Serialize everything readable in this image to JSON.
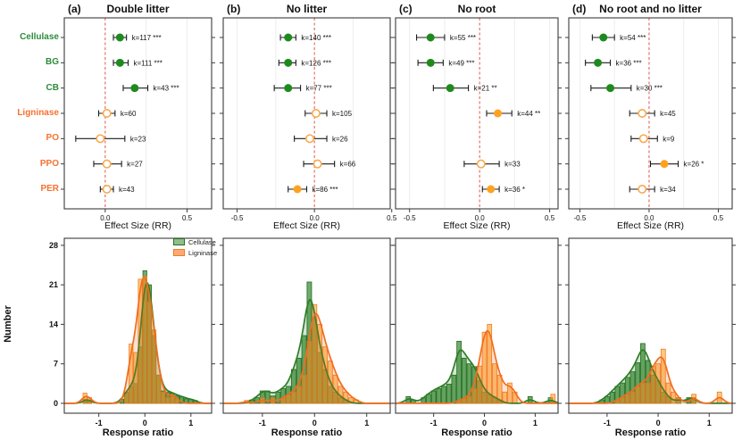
{
  "figure": {
    "top_axis_label": "Effect Size (RR)",
    "bottom_axis_label": "Response ratio",
    "number_label": "Number",
    "legend": [
      {
        "label": "Cellulase",
        "fill": "#8fbf8a",
        "stroke": "#2e6b2a"
      },
      {
        "label": "Ligninase",
        "fill": "#fbaa77",
        "stroke": "#ef7c1e"
      }
    ],
    "enzyme_labels": [
      {
        "label": "Cellulase",
        "color": "#2e8b3c"
      },
      {
        "label": "BG",
        "color": "#2e8b3c"
      },
      {
        "label": "CB",
        "color": "#2e8b3c"
      },
      {
        "label": "Ligninase",
        "color": "#f7712e"
      },
      {
        "label": "PO",
        "color": "#f7712e"
      },
      {
        "label": "PPO",
        "color": "#f7712e"
      },
      {
        "label": "PER",
        "color": "#f7712e"
      }
    ],
    "colors": {
      "filled_green": "#1e8a1e",
      "filled_orange": "#ffa21f",
      "open_orange": "#f8a94e",
      "zero_line": "#e0564a",
      "grid": "#ededed",
      "box_border": "#3b3b3b",
      "error_bar": "#1c1c1c",
      "green_bar_fill": "#4a9444",
      "green_bar_stroke": "#1f6b1f",
      "orange_bar_fill": "#ffa42e",
      "orange_bar_stroke": "#ef7c1e",
      "green_curve": "#2f7d26",
      "orange_curve": "#f26d1d"
    }
  },
  "chart_data": [
    {
      "type": "scatter",
      "subtype": "forest",
      "letter": "(a)",
      "title": "Double litter",
      "xlabel": "Effect Size (RR)",
      "xdomain": [
        -0.25,
        0.65
      ],
      "xticks": [
        0,
        0.5
      ],
      "rows": [
        {
          "enzyme": "Cellulase",
          "est": 0.09,
          "lo": 0.05,
          "hi": 0.13,
          "k": 117,
          "sig": "***",
          "marker": "green"
        },
        {
          "enzyme": "BG",
          "est": 0.09,
          "lo": 0.05,
          "hi": 0.14,
          "k": 111,
          "sig": "***",
          "marker": "green"
        },
        {
          "enzyme": "CB",
          "est": 0.18,
          "lo": 0.11,
          "hi": 0.26,
          "k": 43,
          "sig": "***",
          "marker": "green"
        },
        {
          "enzyme": "Ligninase",
          "est": 0.01,
          "lo": -0.04,
          "hi": 0.06,
          "k": 60,
          "sig": "",
          "marker": "open"
        },
        {
          "enzyme": "PO",
          "est": -0.03,
          "lo": -0.18,
          "hi": 0.12,
          "k": 23,
          "sig": "",
          "marker": "open"
        },
        {
          "enzyme": "PPO",
          "est": 0.01,
          "lo": -0.07,
          "hi": 0.1,
          "k": 27,
          "sig": "",
          "marker": "open"
        },
        {
          "enzyme": "PER",
          "est": 0.01,
          "lo": -0.03,
          "hi": 0.05,
          "k": 43,
          "sig": "",
          "marker": "open"
        }
      ]
    },
    {
      "type": "scatter",
      "subtype": "forest",
      "letter": "(b)",
      "title": "No litter",
      "xlabel": "Effect Size (RR)",
      "xdomain": [
        -0.59,
        0.49
      ],
      "xticks": [
        -0.5,
        0,
        0.5
      ],
      "rows": [
        {
          "enzyme": "Cellulase",
          "est": -0.17,
          "lo": -0.22,
          "hi": -0.12,
          "k": 140,
          "sig": "***",
          "marker": "green"
        },
        {
          "enzyme": "BG",
          "est": -0.17,
          "lo": -0.23,
          "hi": -0.12,
          "k": 126,
          "sig": "***",
          "marker": "green"
        },
        {
          "enzyme": "CB",
          "est": -0.17,
          "lo": -0.26,
          "hi": -0.09,
          "k": 77,
          "sig": "***",
          "marker": "green"
        },
        {
          "enzyme": "Ligninase",
          "est": 0.01,
          "lo": -0.06,
          "hi": 0.08,
          "k": 105,
          "sig": "",
          "marker": "open"
        },
        {
          "enzyme": "PO",
          "est": -0.03,
          "lo": -0.13,
          "hi": 0.08,
          "k": 26,
          "sig": "",
          "marker": "open"
        },
        {
          "enzyme": "PPO",
          "est": 0.02,
          "lo": -0.07,
          "hi": 0.13,
          "k": 66,
          "sig": "",
          "marker": "open"
        },
        {
          "enzyme": "PER",
          "est": -0.11,
          "lo": -0.17,
          "hi": -0.05,
          "k": 86,
          "sig": "***",
          "marker": "orange"
        }
      ]
    },
    {
      "type": "scatter",
      "subtype": "forest",
      "letter": "(c)",
      "title": "No root",
      "xlabel": "Effect Size (RR)",
      "xdomain": [
        -0.6,
        0.56
      ],
      "xticks": [
        -0.5,
        0,
        0.5
      ],
      "rows": [
        {
          "enzyme": "Cellulase",
          "est": -0.35,
          "lo": -0.45,
          "hi": -0.25,
          "k": 55,
          "sig": "***",
          "marker": "green"
        },
        {
          "enzyme": "BG",
          "est": -0.35,
          "lo": -0.44,
          "hi": -0.26,
          "k": 49,
          "sig": "***",
          "marker": "green"
        },
        {
          "enzyme": "CB",
          "est": -0.21,
          "lo": -0.33,
          "hi": -0.08,
          "k": 21,
          "sig": "**",
          "marker": "green"
        },
        {
          "enzyme": "Ligninase",
          "est": 0.13,
          "lo": 0.05,
          "hi": 0.23,
          "k": 44,
          "sig": "**",
          "marker": "orange"
        },
        {
          "enzyme": "PO",
          "est": null,
          "lo": null,
          "hi": null,
          "k": null,
          "sig": "",
          "marker": "none"
        },
        {
          "enzyme": "PPO",
          "est": 0.01,
          "lo": -0.11,
          "hi": 0.14,
          "k": 33,
          "sig": "",
          "marker": "open"
        },
        {
          "enzyme": "PER",
          "est": 0.08,
          "lo": 0.02,
          "hi": 0.14,
          "k": 36,
          "sig": "*",
          "marker": "orange"
        }
      ]
    },
    {
      "type": "scatter",
      "subtype": "forest",
      "letter": "(d)",
      "title": "No root and no litter",
      "xlabel": "Effect Size (RR)",
      "xdomain": [
        -0.58,
        0.6
      ],
      "xticks": [
        -0.5,
        0,
        0.5
      ],
      "rows": [
        {
          "enzyme": "Cellulase",
          "est": -0.33,
          "lo": -0.41,
          "hi": -0.25,
          "k": 54,
          "sig": "***",
          "marker": "green"
        },
        {
          "enzyme": "BG",
          "est": -0.37,
          "lo": -0.46,
          "hi": -0.28,
          "k": 36,
          "sig": "***",
          "marker": "green"
        },
        {
          "enzyme": "CB",
          "est": -0.28,
          "lo": -0.42,
          "hi": -0.13,
          "k": 30,
          "sig": "***",
          "marker": "green"
        },
        {
          "enzyme": "Ligninase",
          "est": -0.05,
          "lo": -0.14,
          "hi": 0.04,
          "k": 45,
          "sig": "",
          "marker": "open"
        },
        {
          "enzyme": "PO",
          "est": -0.04,
          "lo": -0.13,
          "hi": 0.06,
          "k": 9,
          "sig": "",
          "marker": "open"
        },
        {
          "enzyme": "PPO",
          "est": 0.11,
          "lo": 0.01,
          "hi": 0.21,
          "k": 26,
          "sig": "*",
          "marker": "orange"
        },
        {
          "enzyme": "PER",
          "est": -0.05,
          "lo": -0.14,
          "hi": 0.04,
          "k": 34,
          "sig": "",
          "marker": "open"
        }
      ]
    },
    {
      "type": "bar",
      "subtype": "histogram-overlay",
      "condition": "Double litter",
      "xlabel": "Response ratio",
      "ylabel": "Number",
      "xdomain": [
        -1.75,
        1.45
      ],
      "xticks": [
        -1,
        0,
        1
      ],
      "ylim": [
        -1.75,
        29.25
      ],
      "yticks": [
        0,
        7,
        14,
        21,
        28
      ],
      "show_ylabels": true,
      "bin_width": 0.1,
      "series": [
        {
          "name": "Cellulase",
          "bins": [
            [
              -1.3,
              0.7
            ],
            [
              -1.2,
              0.6
            ],
            [
              -0.5,
              0.7
            ],
            [
              -0.4,
              2
            ],
            [
              -0.3,
              3
            ],
            [
              -0.2,
              3.5
            ],
            [
              -0.1,
              10
            ],
            [
              0,
              23.5
            ],
            [
              0.1,
              21
            ],
            [
              0.2,
              12
            ],
            [
              0.3,
              5
            ],
            [
              0.4,
              2.2
            ],
            [
              0.5,
              2
            ],
            [
              0.6,
              1.8
            ],
            [
              0.7,
              1.3
            ],
            [
              0.8,
              1.2
            ],
            [
              0.9,
              0.8
            ],
            [
              1,
              0.7
            ],
            [
              1.1,
              0.5
            ]
          ]
        },
        {
          "name": "Ligninase",
          "bins": [
            [
              -1.3,
              1.8
            ],
            [
              -1.2,
              1
            ],
            [
              -0.4,
              2
            ],
            [
              -0.3,
              10.5
            ],
            [
              -0.2,
              9
            ],
            [
              -0.1,
              22
            ],
            [
              0,
              22.5
            ],
            [
              0.1,
              18
            ],
            [
              0.2,
              13
            ],
            [
              0.3,
              5
            ],
            [
              0.4,
              2
            ],
            [
              0.5,
              1
            ],
            [
              0.6,
              1.6
            ],
            [
              0.7,
              0.8
            ]
          ]
        }
      ]
    },
    {
      "type": "bar",
      "subtype": "histogram-overlay",
      "condition": "No litter",
      "xlabel": "Response ratio",
      "ylabel": "Number",
      "xdomain": [
        -1.75,
        1.45
      ],
      "xticks": [
        -1,
        0,
        1
      ],
      "ylim": [
        -1.75,
        29.25
      ],
      "yticks": [
        0,
        7,
        14,
        21,
        28
      ],
      "show_ylabels": false,
      "bin_width": 0.1,
      "series": [
        {
          "name": "Cellulase",
          "bins": [
            [
              -1.2,
              0.6
            ],
            [
              -1.1,
              1
            ],
            [
              -1,
              2.2
            ],
            [
              -0.9,
              2.2
            ],
            [
              -0.8,
              1.3
            ],
            [
              -0.7,
              2
            ],
            [
              -0.6,
              2.6
            ],
            [
              -0.5,
              3
            ],
            [
              -0.4,
              6
            ],
            [
              -0.3,
              8
            ],
            [
              -0.2,
              12
            ],
            [
              -0.1,
              21.5
            ],
            [
              0,
              15
            ],
            [
              0.1,
              9
            ],
            [
              0.2,
              6
            ],
            [
              0.3,
              3
            ],
            [
              0.4,
              2
            ],
            [
              0.5,
              1
            ],
            [
              0.6,
              0.6
            ]
          ]
        },
        {
          "name": "Ligninase",
          "bins": [
            [
              -1.3,
              0.5
            ],
            [
              -1,
              1
            ],
            [
              -0.8,
              1
            ],
            [
              -0.6,
              1
            ],
            [
              -0.5,
              1.5
            ],
            [
              -0.4,
              2
            ],
            [
              -0.3,
              3
            ],
            [
              -0.2,
              5
            ],
            [
              -0.1,
              11
            ],
            [
              0,
              17.5
            ],
            [
              0.1,
              14
            ],
            [
              0.2,
              10
            ],
            [
              0.3,
              7.5
            ],
            [
              0.4,
              5
            ],
            [
              0.5,
              3
            ],
            [
              0.6,
              2
            ],
            [
              0.7,
              1
            ],
            [
              0.8,
              0.6
            ]
          ]
        }
      ]
    },
    {
      "type": "bar",
      "subtype": "histogram-overlay",
      "condition": "No root",
      "xlabel": "Response ratio",
      "ylabel": "Number",
      "xdomain": [
        -1.75,
        1.45
      ],
      "xticks": [
        -1,
        0,
        1
      ],
      "ylim": [
        -1.75,
        29.25
      ],
      "yticks": [
        0,
        7,
        14,
        21,
        28
      ],
      "show_ylabels": false,
      "bin_width": 0.1,
      "series": [
        {
          "name": "Cellulase",
          "bins": [
            [
              -1.5,
              1.2
            ],
            [
              -1.4,
              0.6
            ],
            [
              -1.2,
              1
            ],
            [
              -1.1,
              1.6
            ],
            [
              -1,
              2.2
            ],
            [
              -0.9,
              2.6
            ],
            [
              -0.8,
              3
            ],
            [
              -0.7,
              3.4
            ],
            [
              -0.6,
              5
            ],
            [
              -0.5,
              11
            ],
            [
              -0.4,
              8
            ],
            [
              -0.3,
              7
            ],
            [
              -0.2,
              6.5
            ],
            [
              -0.1,
              4
            ],
            [
              0,
              2
            ],
            [
              0.1,
              1.5
            ],
            [
              0.2,
              1
            ],
            [
              0.3,
              0.6
            ],
            [
              0.9,
              1.2
            ],
            [
              1.3,
              1
            ]
          ]
        },
        {
          "name": "Ligninase",
          "bins": [
            [
              -0.5,
              0.5
            ],
            [
              -0.4,
              0.8
            ],
            [
              -0.3,
              1.2
            ],
            [
              -0.2,
              2.6
            ],
            [
              -0.1,
              6.6
            ],
            [
              0,
              12.6
            ],
            [
              0.1,
              14
            ],
            [
              0.2,
              7
            ],
            [
              0.3,
              5
            ],
            [
              0.4,
              2
            ],
            [
              0.5,
              3.6
            ],
            [
              0.6,
              2
            ],
            [
              1.35,
              1.6
            ]
          ]
        }
      ]
    },
    {
      "type": "bar",
      "subtype": "histogram-overlay",
      "condition": "No root and no litter",
      "xlabel": "Response ratio",
      "ylabel": "Number",
      "xdomain": [
        -1.75,
        1.45
      ],
      "xticks": [
        -1,
        0,
        1
      ],
      "ylim": [
        -1.75,
        29.25
      ],
      "yticks": [
        0,
        7,
        14,
        21,
        28
      ],
      "show_ylabels": false,
      "bin_width": 0.1,
      "series": [
        {
          "name": "Cellulase",
          "bins": [
            [
              -1.1,
              0.6
            ],
            [
              -1,
              1.2
            ],
            [
              -0.9,
              2
            ],
            [
              -0.8,
              3
            ],
            [
              -0.7,
              3.6
            ],
            [
              -0.6,
              4.6
            ],
            [
              -0.5,
              5.6
            ],
            [
              -0.4,
              7.2
            ],
            [
              -0.3,
              10.6
            ],
            [
              -0.2,
              7.6
            ],
            [
              -0.1,
              5
            ],
            [
              0,
              4
            ],
            [
              0.1,
              2
            ],
            [
              0.2,
              1.2
            ],
            [
              0.4,
              1
            ],
            [
              0.6,
              1
            ],
            [
              0.7,
              1
            ]
          ]
        },
        {
          "name": "Ligninase",
          "bins": [
            [
              -0.8,
              0.6
            ],
            [
              -0.7,
              1
            ],
            [
              -0.6,
              1.6
            ],
            [
              -0.5,
              2
            ],
            [
              -0.4,
              3
            ],
            [
              -0.3,
              3.6
            ],
            [
              -0.2,
              3.6
            ],
            [
              -0.1,
              6.6
            ],
            [
              0,
              7
            ],
            [
              0.1,
              9.6
            ],
            [
              0.2,
              3.6
            ],
            [
              0.3,
              2
            ],
            [
              0.4,
              1
            ],
            [
              0.7,
              1.6
            ],
            [
              1.2,
              2
            ]
          ]
        }
      ]
    }
  ]
}
